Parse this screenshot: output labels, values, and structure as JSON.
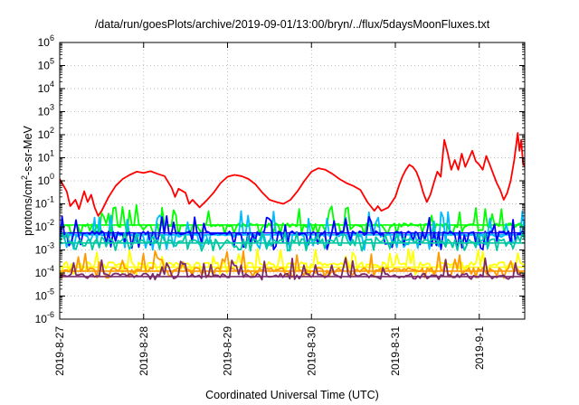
{
  "chart_data": {
    "type": "line",
    "title": "/data/run/goesPlots/archive/2019-09-01/13:00/bryn/../flux/5daysMoonFluxes.txt",
    "xlabel": "Coordinated Universal Time (UTC)",
    "ylabel": "protons/cm²-s-sr-MeV",
    "ylabel_parts": {
      "pre": "protons/cm",
      "sup": "2",
      "post": "-s-sr-MeV"
    },
    "y_scale": "log",
    "ylim": [
      1e-06,
      1000000.0
    ],
    "y_ticks": [
      {
        "value": 1e-06,
        "base": "10",
        "exp": "-6"
      },
      {
        "value": 1e-05,
        "base": "10",
        "exp": "-5"
      },
      {
        "value": 0.0001,
        "base": "10",
        "exp": "-4"
      },
      {
        "value": 0.001,
        "base": "10",
        "exp": "-3"
      },
      {
        "value": 0.01,
        "base": "10",
        "exp": "-2"
      },
      {
        "value": 0.1,
        "base": "10",
        "exp": "-1"
      },
      {
        "value": 1,
        "base": "10",
        "exp": "0"
      },
      {
        "value": 10,
        "base": "10",
        "exp": "1"
      },
      {
        "value": 100,
        "base": "10",
        "exp": "2"
      },
      {
        "value": 1000,
        "base": "10",
        "exp": "3"
      },
      {
        "value": 10000,
        "base": "10",
        "exp": "4"
      },
      {
        "value": 100000,
        "base": "10",
        "exp": "5"
      },
      {
        "value": 1000000,
        "base": "10",
        "exp": "6"
      }
    ],
    "x_axis": "date",
    "xlim": [
      "2019-08-27T00:00",
      "2019-09-01T13:00"
    ],
    "x_ticks": [
      "2019-8-27",
      "2019-8-28",
      "2019-8-29",
      "2019-8-30",
      "2019-8-31",
      "2019-9-1"
    ],
    "grid": true,
    "series": [
      {
        "color": "#ff0000",
        "style": "smooth",
        "points": [
          [
            "2019-08-27T00:00",
            1.2
          ],
          [
            "2019-08-27T02:00",
            0.35
          ],
          [
            "2019-08-27T03:00",
            0.08
          ],
          [
            "2019-08-27T04:30",
            0.15
          ],
          [
            "2019-08-27T05:30",
            0.06
          ],
          [
            "2019-08-27T07:00",
            0.35
          ],
          [
            "2019-08-27T08:00",
            0.12
          ],
          [
            "2019-08-27T09:00",
            0.25
          ],
          [
            "2019-08-27T10:00",
            0.07
          ],
          [
            "2019-08-27T11:00",
            0.03
          ],
          [
            "2019-08-27T12:00",
            0.05
          ],
          [
            "2019-08-27T14:00",
            0.2
          ],
          [
            "2019-08-27T16:00",
            0.6
          ],
          [
            "2019-08-27T18:00",
            1.2
          ],
          [
            "2019-08-27T20:00",
            1.8
          ],
          [
            "2019-08-27T22:00",
            2.5
          ],
          [
            "2019-08-28T00:00",
            2.2
          ],
          [
            "2019-08-28T02:00",
            2.6
          ],
          [
            "2019-08-28T04:00",
            2.0
          ],
          [
            "2019-08-28T06:00",
            1.6
          ],
          [
            "2019-08-28T08:00",
            0.5
          ],
          [
            "2019-08-28T09:00",
            0.2
          ],
          [
            "2019-08-28T10:00",
            0.45
          ],
          [
            "2019-08-28T12:00",
            0.3
          ],
          [
            "2019-08-28T13:00",
            0.1
          ],
          [
            "2019-08-28T14:00",
            0.15
          ],
          [
            "2019-08-28T16:00",
            0.07
          ],
          [
            "2019-08-28T18:00",
            0.14
          ],
          [
            "2019-08-28T20:00",
            0.3
          ],
          [
            "2019-08-28T22:00",
            0.8
          ],
          [
            "2019-08-29T00:00",
            1.5
          ],
          [
            "2019-08-29T02:00",
            1.8
          ],
          [
            "2019-08-29T04:00",
            1.6
          ],
          [
            "2019-08-29T06:00",
            1.2
          ],
          [
            "2019-08-29T08:00",
            0.7
          ],
          [
            "2019-08-29T10:00",
            0.3
          ],
          [
            "2019-08-29T12:00",
            0.15
          ],
          [
            "2019-08-29T14:00",
            0.12
          ],
          [
            "2019-08-29T16:00",
            0.1
          ],
          [
            "2019-08-29T18:00",
            0.15
          ],
          [
            "2019-08-29T20:00",
            0.35
          ],
          [
            "2019-08-29T22:00",
            1.0
          ],
          [
            "2019-08-30T00:00",
            2.5
          ],
          [
            "2019-08-30T02:00",
            3.5
          ],
          [
            "2019-08-30T04:00",
            3.0
          ],
          [
            "2019-08-30T06:00",
            2.0
          ],
          [
            "2019-08-30T08:00",
            1.2
          ],
          [
            "2019-08-30T10:00",
            0.8
          ],
          [
            "2019-08-30T12:00",
            0.6
          ],
          [
            "2019-08-30T14:00",
            0.4
          ],
          [
            "2019-08-30T16:00",
            0.12
          ],
          [
            "2019-08-30T18:00",
            0.05
          ],
          [
            "2019-08-30T19:00",
            0.08
          ],
          [
            "2019-08-30T20:00",
            0.05
          ],
          [
            "2019-08-30T22:00",
            0.07
          ],
          [
            "2019-08-31T00:00",
            0.2
          ],
          [
            "2019-08-31T01:00",
            0.6
          ],
          [
            "2019-08-31T02:00",
            1.5
          ],
          [
            "2019-08-31T03:00",
            3.0
          ],
          [
            "2019-08-31T04:00",
            5.0
          ],
          [
            "2019-08-31T05:00",
            4.0
          ],
          [
            "2019-08-31T06:00",
            2.5
          ],
          [
            "2019-08-31T07:00",
            1.0
          ],
          [
            "2019-08-31T08:00",
            0.3
          ],
          [
            "2019-08-31T09:00",
            0.12
          ],
          [
            "2019-08-31T10:00",
            0.25
          ],
          [
            "2019-08-31T11:00",
            0.8
          ],
          [
            "2019-08-31T12:00",
            2.5
          ],
          [
            "2019-08-31T13:00",
            1.5
          ],
          [
            "2019-08-31T14:00",
            60
          ],
          [
            "2019-08-31T15:00",
            15
          ],
          [
            "2019-08-31T16:00",
            3
          ],
          [
            "2019-08-31T17:00",
            8
          ],
          [
            "2019-08-31T18:00",
            3
          ],
          [
            "2019-08-31T19:00",
            15
          ],
          [
            "2019-08-31T20:00",
            4
          ],
          [
            "2019-08-31T21:00",
            9
          ],
          [
            "2019-08-31T22:00",
            20
          ],
          [
            "2019-08-31T23:00",
            7
          ],
          [
            "2019-09-01T00:00",
            5
          ],
          [
            "2019-09-01T01:00",
            3
          ],
          [
            "2019-09-01T02:00",
            12
          ],
          [
            "2019-09-01T03:00",
            5
          ],
          [
            "2019-09-01T04:00",
            2
          ],
          [
            "2019-09-01T05:00",
            0.8
          ],
          [
            "2019-09-01T06:00",
            0.4
          ],
          [
            "2019-09-01T07:00",
            0.15
          ],
          [
            "2019-09-01T08:00",
            0.3
          ],
          [
            "2019-09-01T09:00",
            1.0
          ],
          [
            "2019-09-01T10:00",
            8
          ],
          [
            "2019-09-01T11:00",
            120
          ],
          [
            "2019-09-01T11:30",
            20
          ],
          [
            "2019-09-01T12:00",
            60
          ],
          [
            "2019-09-01T12:30",
            6
          ],
          [
            "2019-09-01T13:00",
            4
          ]
        ]
      },
      {
        "color": "#00ff00",
        "style": "noisy",
        "base": 0.012,
        "spike": 0.09,
        "dip": 0.004,
        "seed": 11,
        "threshold": 0.012
      },
      {
        "color": "#00bbff",
        "style": "noisy",
        "base": 0.0045,
        "spike": 0.05,
        "dip": 0.0009,
        "seed": 23,
        "threshold": 0.0045
      },
      {
        "color": "#0000ff",
        "style": "noisy",
        "base": 0.0055,
        "spike": 0.03,
        "dip": 0.001,
        "seed": 37,
        "threshold": 0.0055
      },
      {
        "color": "#00c8a0",
        "style": "noisy",
        "base": 0.0025,
        "spike": 0.006,
        "dip": 0.0009,
        "seed": 41,
        "threshold": 0.002
      },
      {
        "color": "#ffff00",
        "style": "noisy",
        "base": 0.00025,
        "spike": 0.0012,
        "dip": 8e-05,
        "seed": 53,
        "threshold": 0.00018
      },
      {
        "color": "#ff9900",
        "style": "noisy",
        "base": 0.00014,
        "spike": 0.0009,
        "dip": 6e-05,
        "seed": 61,
        "threshold": 0.00012
      },
      {
        "color": "#7a2a6a",
        "style": "noisy",
        "base": 8e-05,
        "spike": 0.0005,
        "dip": 5e-05,
        "seed": 71,
        "threshold": 7e-05
      }
    ]
  }
}
